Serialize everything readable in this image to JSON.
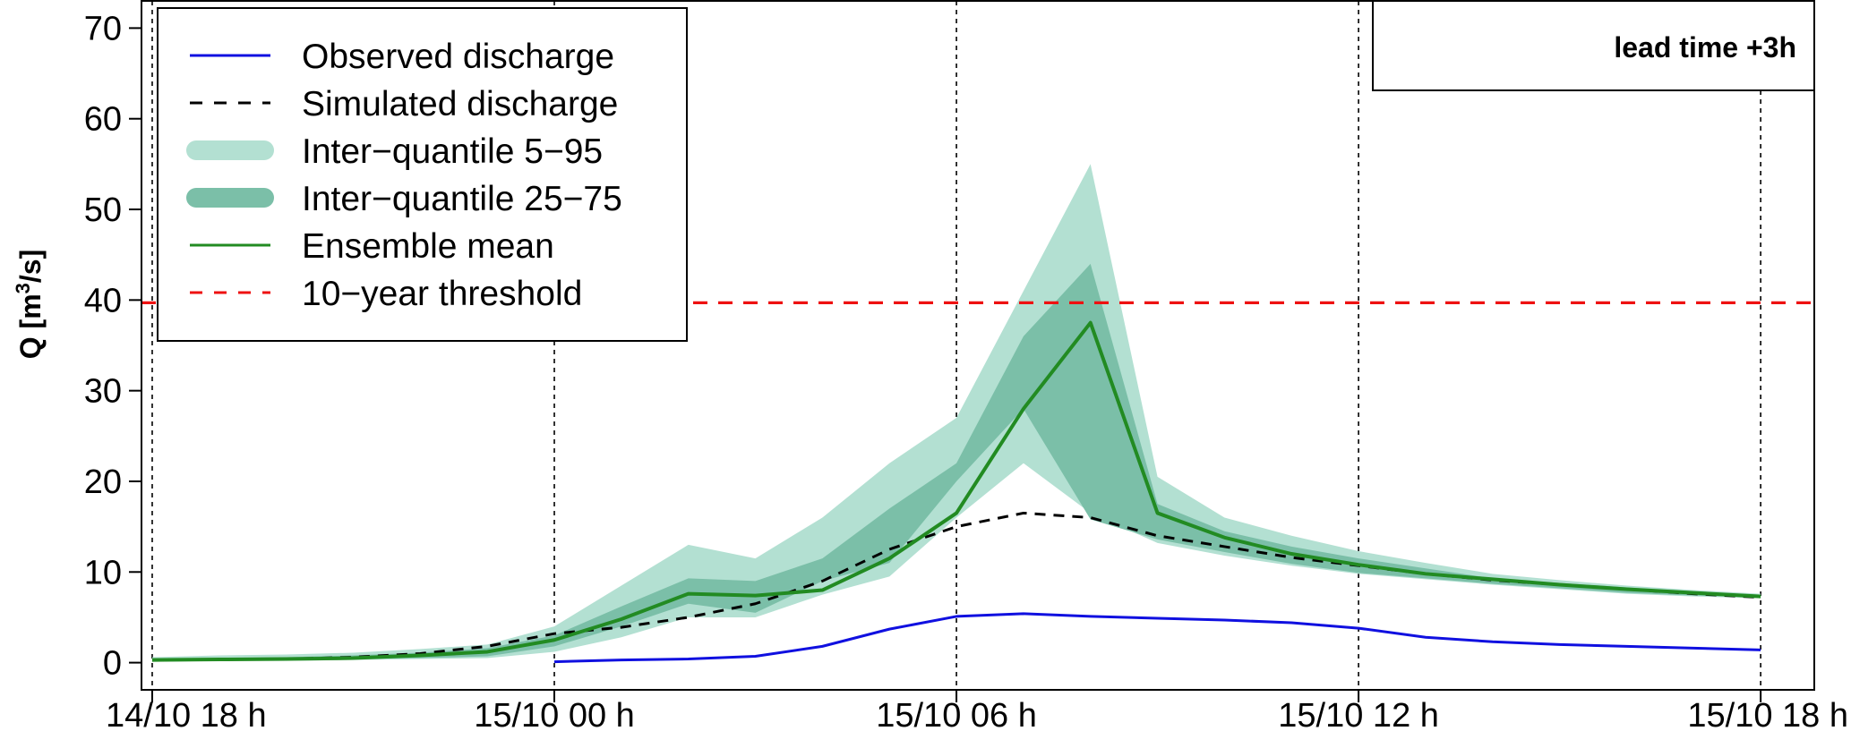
{
  "chart_data": {
    "type": "line",
    "ylabel": "Q [m³/s]",
    "ylabel_parts": {
      "prefix": "Q [m",
      "superscript": "3",
      "suffix": "/s]"
    },
    "ylim": [
      -3,
      73
    ],
    "yticks": [
      0,
      10,
      20,
      30,
      40,
      50,
      60,
      70
    ],
    "ytick_labels": [
      "0",
      "10",
      "20",
      "30",
      "40",
      "50",
      "60",
      "70"
    ],
    "xlim": [
      -0.16,
      24.8
    ],
    "xticks": [
      0,
      6,
      12,
      18,
      24
    ],
    "xtick_labels": [
      "14/10 18 h",
      "15/10 00 h",
      "15/10 06 h",
      "15/10 12 h",
      "15/10 18 h"
    ],
    "grid": {
      "vertical_dashed_at_ticks": true,
      "horizontal": false
    },
    "legend": {
      "placement": "top-left",
      "entries": [
        {
          "label": "Observed discharge",
          "style": "solid",
          "color": "#1010e0"
        },
        {
          "label": "Simulated discharge",
          "style": "dashed",
          "color": "#000000"
        },
        {
          "label": "Inter−quantile 5−95",
          "style": "band",
          "color": "#b3e0d2"
        },
        {
          "label": "Inter−quantile 25−75",
          "style": "band",
          "color": "#7bbfa8"
        },
        {
          "label": "Ensemble mean",
          "style": "solid",
          "color": "#228b22"
        },
        {
          "label": "10−year threshold",
          "style": "dashed",
          "color": "#ee1111"
        }
      ]
    },
    "annotation": {
      "text": "lead time +3h",
      "placement": "top-right"
    },
    "threshold": {
      "name": "10−year threshold",
      "value": 39.7,
      "color": "#ee1111"
    },
    "x_hours": [
      0,
      1,
      2,
      3,
      4,
      5,
      6,
      7,
      8,
      9,
      10,
      11,
      12,
      13,
      14,
      15,
      16,
      17,
      18,
      19,
      20,
      21,
      22,
      23,
      24
    ],
    "series": [
      {
        "name": "Inter−quantile 5−95",
        "kind": "band",
        "color": "#b3e0d2",
        "x": [
          0,
          1,
          2,
          3,
          4,
          5,
          6,
          7,
          8,
          9,
          10,
          11,
          12,
          13,
          14,
          15,
          16,
          17,
          18,
          19,
          20,
          21,
          22,
          23,
          24
        ],
        "lower": [
          0.1,
          0.2,
          0.2,
          0.3,
          0.4,
          0.5,
          1.2,
          2.8,
          5.0,
          5.0,
          7.5,
          9.5,
          16.0,
          22.0,
          16.5,
          13.2,
          11.8,
          10.7,
          9.8,
          9.2,
          8.6,
          8.1,
          7.6,
          7.3,
          7.1
        ],
        "upper": [
          0.6,
          0.8,
          0.9,
          1.1,
          1.5,
          2.0,
          4.0,
          8.5,
          13.0,
          11.5,
          16.0,
          22.0,
          27.0,
          41.0,
          55.0,
          20.5,
          16.0,
          14.0,
          12.3,
          11.0,
          9.8,
          9.1,
          8.5,
          8.0,
          7.6
        ]
      },
      {
        "name": "Inter−quantile 25−75",
        "kind": "band",
        "color": "#7bbfa8",
        "x": [
          0,
          1,
          2,
          3,
          4,
          5,
          6,
          7,
          8,
          9,
          10,
          11,
          12,
          13,
          14,
          15,
          16,
          17,
          18,
          19,
          20,
          21,
          22,
          23,
          24
        ],
        "lower": [
          0.2,
          0.3,
          0.3,
          0.4,
          0.5,
          0.7,
          1.8,
          4.0,
          6.5,
          5.5,
          9.0,
          11.0,
          20.0,
          28.0,
          15.8,
          13.6,
          12.2,
          10.9,
          9.9,
          9.3,
          8.7,
          8.2,
          7.7,
          7.4,
          7.2
        ],
        "upper": [
          0.4,
          0.5,
          0.6,
          0.8,
          1.1,
          1.6,
          3.0,
          6.2,
          9.3,
          9.0,
          11.5,
          17.0,
          22.0,
          36.0,
          44.0,
          17.5,
          14.5,
          12.8,
          11.5,
          10.4,
          9.3,
          8.8,
          8.3,
          7.8,
          7.5
        ]
      },
      {
        "name": "Observed discharge",
        "kind": "line",
        "color": "#1010e0",
        "x": [
          6,
          7,
          8,
          9,
          10,
          11,
          12,
          13,
          14,
          15,
          16,
          17,
          18,
          19,
          20,
          21,
          22,
          23,
          24
        ],
        "y": [
          0.1,
          0.3,
          0.4,
          0.7,
          1.8,
          3.7,
          5.1,
          5.4,
          5.1,
          4.9,
          4.7,
          4.4,
          3.8,
          2.8,
          2.3,
          2.0,
          1.8,
          1.6,
          1.4
        ]
      },
      {
        "name": "Simulated discharge",
        "kind": "line",
        "dashed": true,
        "color": "#000000",
        "x": [
          0,
          1,
          2,
          3,
          4,
          5,
          6,
          7,
          8,
          9,
          10,
          11,
          12,
          13,
          14,
          15,
          16,
          17,
          18,
          19,
          20,
          21,
          22,
          23,
          24
        ],
        "y": [
          0.3,
          0.35,
          0.4,
          0.6,
          1.0,
          1.8,
          3.2,
          3.9,
          5.0,
          6.5,
          9.0,
          12.5,
          15.0,
          16.5,
          16.0,
          14.0,
          12.8,
          11.6,
          10.7,
          9.8,
          9.1,
          8.6,
          8.1,
          7.6,
          7.2
        ]
      },
      {
        "name": "Ensemble mean",
        "kind": "line",
        "color": "#228b22",
        "x": [
          0,
          1,
          2,
          3,
          4,
          5,
          6,
          7,
          8,
          9,
          10,
          11,
          12,
          13,
          14,
          15,
          16,
          17,
          18,
          19,
          20,
          21,
          22,
          23,
          24
        ],
        "y": [
          0.3,
          0.35,
          0.4,
          0.5,
          0.8,
          1.2,
          2.5,
          4.8,
          7.6,
          7.4,
          8.0,
          11.5,
          16.5,
          28.0,
          37.5,
          16.5,
          13.8,
          12.0,
          10.8,
          9.8,
          9.2,
          8.6,
          8.1,
          7.7,
          7.3
        ]
      }
    ]
  }
}
